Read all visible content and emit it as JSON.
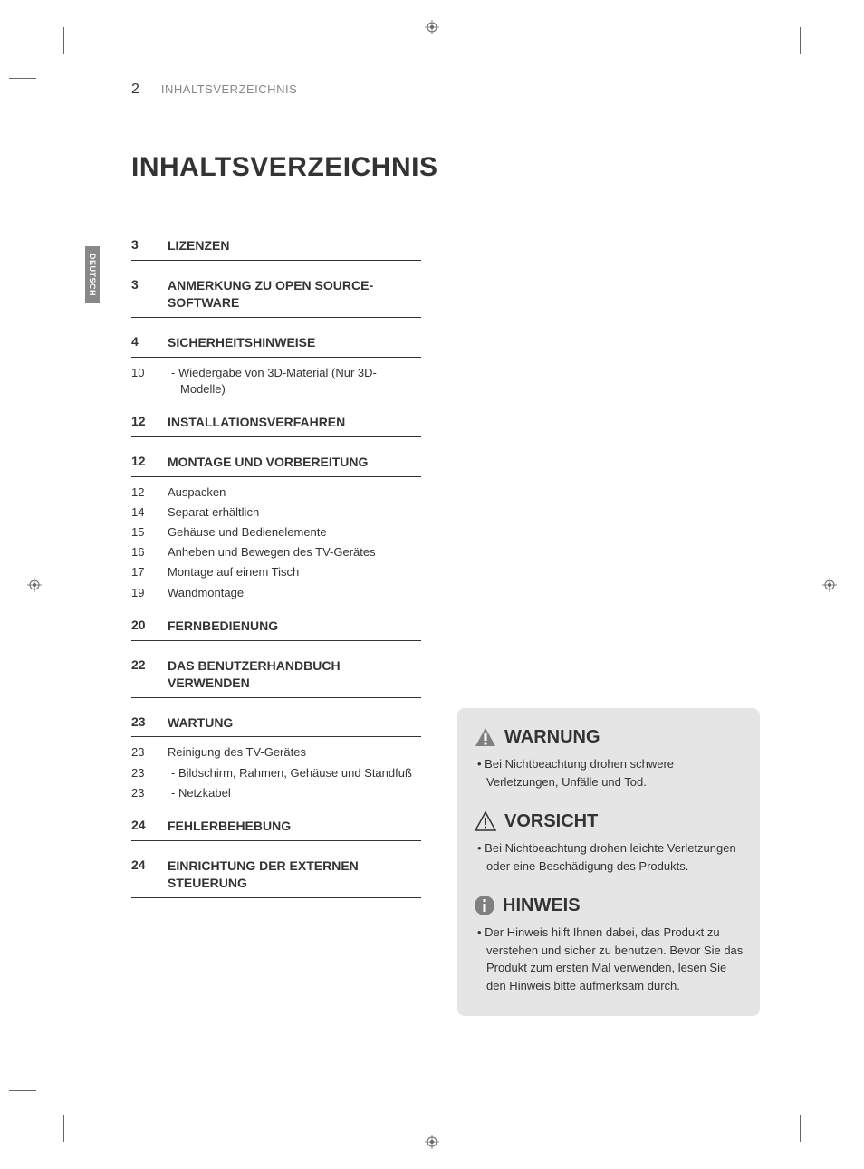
{
  "page_number": "2",
  "header_label": "INHALTSVERZEICHNIS",
  "main_title": "INHALTSVERZEICHNIS",
  "lang_tab": "DEUTSCH",
  "colors": {
    "text": "#333333",
    "muted": "#888888",
    "notice_bg": "#e5e5e5",
    "warning_triangle_fill": "#808080",
    "warning_triangle_stroke": "#333333",
    "caution_stroke": "#333333",
    "note_circle": "#808080"
  },
  "toc": [
    {
      "page": "3",
      "title": "LIZENZEN",
      "subs": []
    },
    {
      "page": "3",
      "title": "ANMERKUNG ZU OPEN SOURCE-SOFTWARE",
      "subs": []
    },
    {
      "page": "4",
      "title": "SICHERHEITSHINWEISE",
      "subs": [
        {
          "page": "10",
          "title": "Wiedergabe von 3D-Material (Nur 3D-Modelle)",
          "indent": true
        }
      ]
    },
    {
      "page": "12",
      "title": "INSTALLATIONSVERFAHREN",
      "subs": []
    },
    {
      "page": "12",
      "title": "MONTAGE UND VORBEREITUNG",
      "subs": [
        {
          "page": "12",
          "title": "Auspacken"
        },
        {
          "page": "14",
          "title": "Separat erhältlich"
        },
        {
          "page": "15",
          "title": "Gehäuse und Bedienelemente"
        },
        {
          "page": "16",
          "title": "Anheben und Bewegen des TV-Gerätes"
        },
        {
          "page": "17",
          "title": "Montage auf einem Tisch"
        },
        {
          "page": "19",
          "title": "Wandmontage"
        }
      ]
    },
    {
      "page": "20",
      "title": "FERNBEDIENUNG",
      "subs": []
    },
    {
      "page": "22",
      "title": "DAS BENUTZERHANDBUCH VERWENDEN",
      "subs": []
    },
    {
      "page": "23",
      "title": "WARTUNG",
      "subs": [
        {
          "page": "23",
          "title": "Reinigung des TV-Gerätes"
        },
        {
          "page": "23",
          "title": "Bildschirm, Rahmen, Gehäuse und Standfuß",
          "indent": true
        },
        {
          "page": "23",
          "title": "Netzkabel",
          "indent": true
        }
      ]
    },
    {
      "page": "24",
      "title": "FEHLERBEHEBUNG",
      "subs": []
    },
    {
      "page": "24",
      "title": "EINRICHTUNG DER EXTERNEN STEUERUNG",
      "subs": []
    }
  ],
  "notices": [
    {
      "icon": "warning",
      "title": "WARNUNG",
      "text": "Bei Nichtbeachtung drohen schwere Verletzungen, Unfälle und Tod."
    },
    {
      "icon": "caution",
      "title": "VORSICHT",
      "text": "Bei Nichtbeachtung drohen leichte Verletzungen oder eine Beschädigung des Produkts."
    },
    {
      "icon": "note",
      "title": "HINWEIS",
      "text": "Der Hinweis hilft Ihnen dabei, das Produkt zu verstehen und sicher zu benutzen. Bevor Sie das Produkt zum ersten Mal verwenden, lesen Sie den Hinweis bitte aufmerksam durch."
    }
  ]
}
